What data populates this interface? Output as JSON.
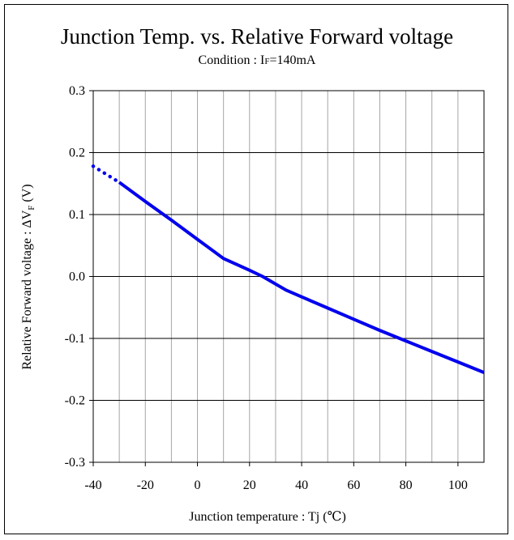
{
  "chart_data": {
    "type": "line",
    "title": "Junction Temp. vs.  Relative Forward voltage",
    "subtitle_prefix": "Condition : I",
    "subtitle_sub": "F",
    "subtitle_suffix": "=140mA",
    "xlabel": "Junction temperature : Tj (℃)",
    "ylabel_prefix": "Relative Forward voltage : ΔV",
    "ylabel_sub": "F",
    "ylabel_suffix": " (V)",
    "xlim": [
      -40,
      110
    ],
    "ylim": [
      -0.3,
      0.3
    ],
    "x_ticks": [
      -40,
      -20,
      0,
      20,
      40,
      60,
      80,
      100
    ],
    "x_tick_labels": [
      "-40",
      "-20",
      "0",
      "20",
      "40",
      "60",
      "80",
      "100"
    ],
    "y_ticks": [
      0.3,
      0.2,
      0.1,
      0.0,
      -0.1,
      -0.2,
      -0.3
    ],
    "y_tick_labels": [
      "0.3",
      "0.2",
      "0.1",
      "0.0",
      "-0.1",
      "-0.2",
      "-0.3"
    ],
    "x_grid_values": [
      -30,
      -20,
      -10,
      0,
      10,
      20,
      30,
      40,
      50,
      60,
      70,
      80,
      90,
      100
    ],
    "y_grid_values": [
      0.2,
      0.1,
      0.0,
      -0.1,
      -0.2
    ],
    "grid": true,
    "line_color": "#0000ee",
    "series": [
      {
        "style": "dotted",
        "x": [
          -40,
          -30
        ],
        "y": [
          0.178,
          0.152
        ]
      },
      {
        "style": "solid",
        "x": [
          -30,
          -20,
          -10,
          0,
          10,
          20,
          25,
          34,
          40,
          50,
          60,
          70,
          80,
          90,
          100,
          110
        ],
        "y": [
          0.152,
          0.121,
          0.091,
          0.06,
          0.029,
          0.01,
          0.0,
          -0.022,
          -0.033,
          -0.051,
          -0.069,
          -0.087,
          -0.104,
          -0.121,
          -0.138,
          -0.155
        ]
      }
    ]
  }
}
